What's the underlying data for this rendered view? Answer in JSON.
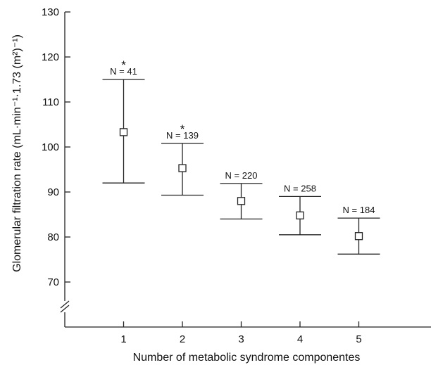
{
  "chart_data": {
    "type": "errorbar",
    "title": "",
    "xlabel": "Number of metabolic syndrome componentes",
    "ylabel": "Glomerular filtration rate (mL·min⁻¹·1.73 (m²)⁻¹)",
    "ylim": [
      60,
      130
    ],
    "yticks": [
      70,
      80,
      90,
      100,
      110,
      120,
      130
    ],
    "xlim": [
      0,
      6
    ],
    "x": [
      1,
      2,
      3,
      4,
      5
    ],
    "x_tick_labels": [
      "1",
      "2",
      "3",
      "4",
      "5"
    ],
    "mean": [
      103.3,
      95.3,
      88.0,
      84.8,
      80.2
    ],
    "lower": [
      92.0,
      89.3,
      84.0,
      80.5,
      76.2
    ],
    "upper": [
      115.0,
      100.8,
      91.9,
      89.0,
      84.2
    ],
    "n_labels": [
      "N = 41",
      "N = 139",
      "N = 220",
      "N = 258",
      "N = 184"
    ],
    "significant": [
      true,
      true,
      false,
      false,
      false
    ],
    "significance_marker": "*",
    "axis_break": true,
    "grid": false,
    "legend": "none"
  }
}
